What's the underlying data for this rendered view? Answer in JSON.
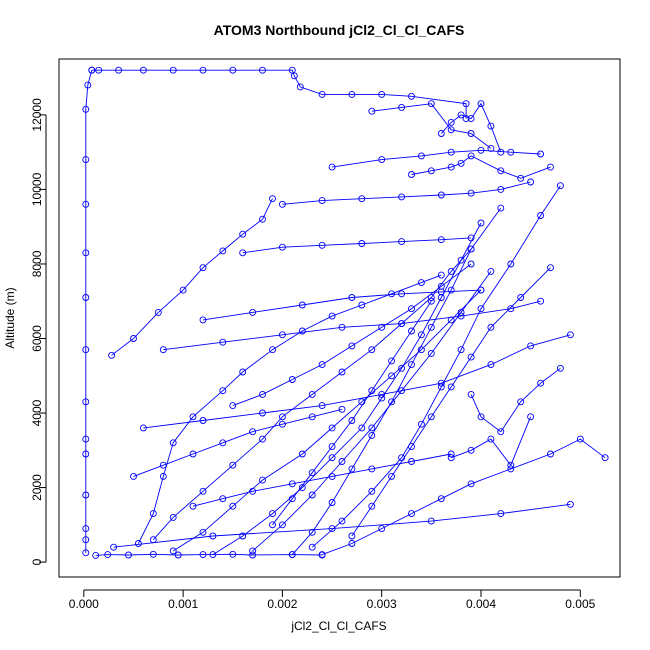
{
  "chart_data": {
    "type": "line",
    "title": "ATOM3 Northbound jCl2_Cl_Cl_CAFS",
    "xlabel": "jCl2_Cl_Cl_CAFS",
    "ylabel": "Altitude (m)",
    "xlim": [
      -0.00025,
      0.0054
    ],
    "ylim": [
      -400,
      13500
    ],
    "xticks": [
      0.0,
      0.001,
      0.002,
      0.003,
      0.004,
      0.005
    ],
    "xtick_labels": [
      "0.000",
      "0.001",
      "0.002",
      "0.003",
      "0.004",
      "0.005"
    ],
    "yticks": [
      0,
      2000,
      4000,
      6000,
      8000,
      10000,
      12000
    ],
    "ytick_labels": [
      "0",
      "2000",
      "4000",
      "6000",
      "8000",
      "10000",
      "12000"
    ],
    "grid": false,
    "line_color": "#0000ff",
    "marker": "open-circle",
    "series": [
      {
        "x": [
          2e-05,
          2e-05,
          2e-05,
          2e-05,
          2e-05,
          2e-05,
          2e-05,
          2e-05,
          2e-05,
          2e-05,
          2e-05,
          2e-05,
          2e-05,
          4e-05,
          8e-05
        ],
        "y": [
          250,
          600,
          900,
          1800,
          2900,
          3300,
          4300,
          5700,
          7100,
          8300,
          9600,
          10800,
          12150,
          12800,
          13200
        ]
      },
      {
        "x": [
          8e-05,
          0.00015,
          0.00035,
          0.0006,
          0.0009,
          0.0012,
          0.0015,
          0.0018,
          0.0021,
          0.00212,
          0.00218,
          0.0024,
          0.0027,
          0.003,
          0.0033,
          0.00385,
          0.00385
        ],
        "y": [
          13200,
          13200,
          13200,
          13200,
          13200,
          13200,
          13200,
          13200,
          13200,
          13050,
          12750,
          12550,
          12550,
          12550,
          12500,
          12300,
          11900
        ]
      },
      {
        "x": [
          0.00028,
          0.0005,
          0.00075,
          0.001,
          0.0012,
          0.0014,
          0.0016,
          0.0018,
          0.0019
        ],
        "y": [
          5550,
          6000,
          6700,
          7300,
          7900,
          8350,
          8800,
          9200,
          9750
        ]
      },
      {
        "x": [
          0.00012,
          0.00024,
          0.00045,
          0.0007,
          0.00095,
          0.0012,
          0.0015,
          0.0017,
          0.0021,
          0.0024
        ],
        "y": [
          180,
          200,
          190,
          210,
          190,
          200,
          210,
          190,
          200,
          190
        ]
      },
      {
        "x": [
          0.00055,
          0.0007,
          0.0008,
          0.0009,
          0.0011,
          0.0014,
          0.0016,
          0.0019,
          0.0022,
          0.0025,
          0.0028,
          0.0031,
          0.0034,
          0.0036
        ],
        "y": [
          500,
          1300,
          2300,
          3200,
          3900,
          4600,
          5100,
          5700,
          6200,
          6600,
          6900,
          7200,
          7500,
          7700
        ]
      },
      {
        "x": [
          0.0007,
          0.0009,
          0.0012,
          0.0015,
          0.0018,
          0.002,
          0.0023,
          0.0026,
          0.0029,
          0.0032,
          0.0035,
          0.0037,
          0.0039
        ],
        "y": [
          600,
          1200,
          1900,
          2600,
          3300,
          3900,
          4500,
          5100,
          5700,
          6400,
          7100,
          7800,
          8400
        ]
      },
      {
        "x": [
          0.0009,
          0.0012,
          0.0015,
          0.0018,
          0.0022,
          0.0025,
          0.0028,
          0.0031,
          0.0034,
          0.0037,
          0.004
        ],
        "y": [
          300,
          800,
          1500,
          2200,
          2900,
          3600,
          4300,
          5000,
          5700,
          6500,
          7300
        ]
      },
      {
        "x": [
          0.0013,
          0.0016,
          0.0019,
          0.0022,
          0.0025,
          0.0028,
          0.003,
          0.0032,
          0.0034,
          0.0036,
          0.0038,
          0.004
        ],
        "y": [
          200,
          700,
          1300,
          2000,
          2800,
          3600,
          4400,
          5200,
          6100,
          7100,
          8100,
          9100
        ]
      },
      {
        "x": [
          0.0017,
          0.002,
          0.0023,
          0.0026,
          0.0029,
          0.0032,
          0.0035,
          0.0038,
          0.0041
        ],
        "y": [
          300,
          1000,
          1800,
          2700,
          3600,
          4600,
          5600,
          6700,
          7800
        ]
      },
      {
        "x": [
          0.0021,
          0.0023,
          0.0025,
          0.0027,
          0.0029,
          0.0031,
          0.0033,
          0.0035,
          0.0037,
          0.0039,
          0.0042
        ],
        "y": [
          200,
          800,
          1600,
          2500,
          3400,
          4300,
          5300,
          6300,
          7300,
          8400,
          9500
        ]
      },
      {
        "x": [
          0.0023,
          0.0026,
          0.0029,
          0.0032,
          0.0034,
          0.0036,
          0.0038,
          0.004,
          0.0043,
          0.0046,
          0.0048
        ],
        "y": [
          400,
          1100,
          1900,
          2800,
          3700,
          4700,
          5700,
          6800,
          8000,
          9300,
          10100
        ]
      },
      {
        "x": [
          0.0024,
          0.0027,
          0.003,
          0.0033,
          0.0036,
          0.0039,
          0.0043,
          0.0047,
          0.005,
          0.00525
        ],
        "y": [
          200,
          500,
          900,
          1300,
          1700,
          2100,
          2500,
          2900,
          3300,
          2800
        ]
      },
      {
        "x": [
          0.0003,
          0.0013,
          0.0025,
          0.0035,
          0.0042,
          0.0049
        ],
        "y": [
          400,
          700,
          900,
          1100,
          1300,
          1550
        ]
      },
      {
        "x": [
          0.0006,
          0.0012,
          0.0018,
          0.0024,
          0.003,
          0.0036,
          0.0041,
          0.0045,
          0.0049
        ],
        "y": [
          3600,
          3800,
          4000,
          4200,
          4500,
          4800,
          5300,
          5800,
          6100
        ]
      },
      {
        "x": [
          0.0008,
          0.0014,
          0.002,
          0.0026,
          0.0032,
          0.0038,
          0.0043,
          0.0046
        ],
        "y": [
          5700,
          5900,
          6100,
          6300,
          6400,
          6600,
          6800,
          7000
        ]
      },
      {
        "x": [
          0.0012,
          0.0017,
          0.0022,
          0.0027,
          0.0032,
          0.0036,
          0.004
        ],
        "y": [
          6500,
          6700,
          6900,
          7100,
          7200,
          7250,
          7300
        ]
      },
      {
        "x": [
          0.0016,
          0.002,
          0.0024,
          0.0028,
          0.0032,
          0.0036,
          0.0039
        ],
        "y": [
          8300,
          8450,
          8500,
          8550,
          8600,
          8650,
          8700
        ]
      },
      {
        "x": [
          0.002,
          0.0024,
          0.0028,
          0.0032,
          0.0036,
          0.0039,
          0.0042,
          0.0045
        ],
        "y": [
          9600,
          9700,
          9750,
          9800,
          9850,
          9900,
          10000,
          10200
        ]
      },
      {
        "x": [
          0.0025,
          0.003,
          0.0034,
          0.0037,
          0.004,
          0.0043,
          0.0046
        ],
        "y": [
          10600,
          10800,
          10900,
          11000,
          11050,
          11000,
          10950
        ]
      },
      {
        "x": [
          0.0029,
          0.0032,
          0.0035,
          0.0037,
          0.0039,
          0.0041
        ],
        "y": [
          12100,
          12200,
          12300,
          11600,
          11500,
          11100
        ]
      },
      {
        "x": [
          0.0036,
          0.0037,
          0.0038,
          0.0039,
          0.004,
          0.0041,
          0.0042
        ],
        "y": [
          11500,
          11800,
          12000,
          11900,
          12300,
          11700,
          11000
        ]
      },
      {
        "x": [
          0.0033,
          0.0035,
          0.0037,
          0.0038,
          0.0039,
          0.0042,
          0.0044,
          0.0047
        ],
        "y": [
          10400,
          10500,
          10600,
          10700,
          10900,
          10500,
          10300,
          10600
        ]
      },
      {
        "x": [
          0.0011,
          0.0014,
          0.0017,
          0.0021,
          0.0025,
          0.0029,
          0.0033,
          0.0037
        ],
        "y": [
          1500,
          1700,
          1900,
          2100,
          2300,
          2500,
          2700,
          2900
        ]
      },
      {
        "x": [
          0.0005,
          0.0008,
          0.0011,
          0.0014,
          0.0017,
          0.002,
          0.0023,
          0.0026
        ],
        "y": [
          2300,
          2600,
          2900,
          3200,
          3500,
          3700,
          3900,
          4100
        ]
      },
      {
        "x": [
          0.0019,
          0.0021,
          0.0023,
          0.0025,
          0.0027,
          0.0029,
          0.0031,
          0.0033,
          0.0035
        ],
        "y": [
          1000,
          1700,
          2400,
          3100,
          3800,
          4600,
          5400,
          6200,
          7000
        ]
      },
      {
        "x": [
          0.0027,
          0.0029,
          0.0031,
          0.0033,
          0.0035,
          0.0037,
          0.0039,
          0.0041,
          0.0044,
          0.0047
        ],
        "y": [
          700,
          1500,
          2300,
          3100,
          3900,
          4700,
          5500,
          6300,
          7100,
          7900
        ]
      },
      {
        "x": [
          0.0015,
          0.0018,
          0.0021,
          0.0024,
          0.0027,
          0.003,
          0.0033,
          0.0036,
          0.0039
        ],
        "y": [
          4200,
          4500,
          4900,
          5300,
          5800,
          6300,
          6800,
          7400,
          8000
        ]
      },
      {
        "x": [
          0.0037,
          0.0039,
          0.0041,
          0.0043,
          0.0045
        ],
        "y": [
          2800,
          3000,
          3300,
          2600,
          3900
        ]
      },
      {
        "x": [
          0.0039,
          0.004,
          0.0042,
          0.0044,
          0.0046,
          0.0048
        ],
        "y": [
          4500,
          3900,
          3500,
          4300,
          4800,
          5200
        ]
      }
    ]
  }
}
